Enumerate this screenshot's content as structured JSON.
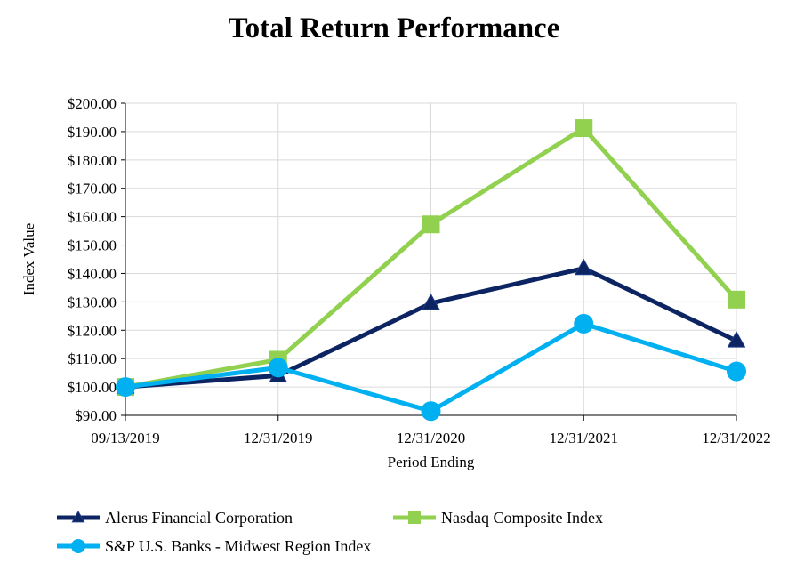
{
  "chart_data": {
    "type": "line",
    "title": "Total Return Performance",
    "xlabel": "Period Ending",
    "ylabel": "Index Value",
    "categories": [
      "09/13/2019",
      "12/31/2019",
      "12/31/2020",
      "12/31/2021",
      "12/31/2022"
    ],
    "ylim": [
      90,
      200
    ],
    "y_ticks": [
      90,
      100,
      110,
      120,
      130,
      140,
      150,
      160,
      170,
      180,
      190,
      200
    ],
    "y_tick_labels": [
      "$90.00",
      "$100.00",
      "$110.00",
      "$120.00",
      "$130.00",
      "$140.00",
      "$150.00",
      "$160.00",
      "$170.00",
      "$180.00",
      "$190.00",
      "$200.00"
    ],
    "grid": true,
    "legend_position": "bottom",
    "series": [
      {
        "name": "Alerus Financial Corporation",
        "color": "#0c2461",
        "marker": "triangle",
        "values": [
          100.0,
          104.0,
          129.5,
          141.8,
          116.3
        ]
      },
      {
        "name": "Nasdaq Composite Index",
        "color": "#92d050",
        "marker": "square",
        "values": [
          100.0,
          109.6,
          157.3,
          191.2,
          130.8
        ]
      },
      {
        "name": "S&P U.S. Banks - Midwest Region Index",
        "color": "#00b0f0",
        "marker": "circle",
        "values": [
          100.0,
          106.8,
          91.5,
          122.3,
          105.5
        ]
      }
    ]
  }
}
